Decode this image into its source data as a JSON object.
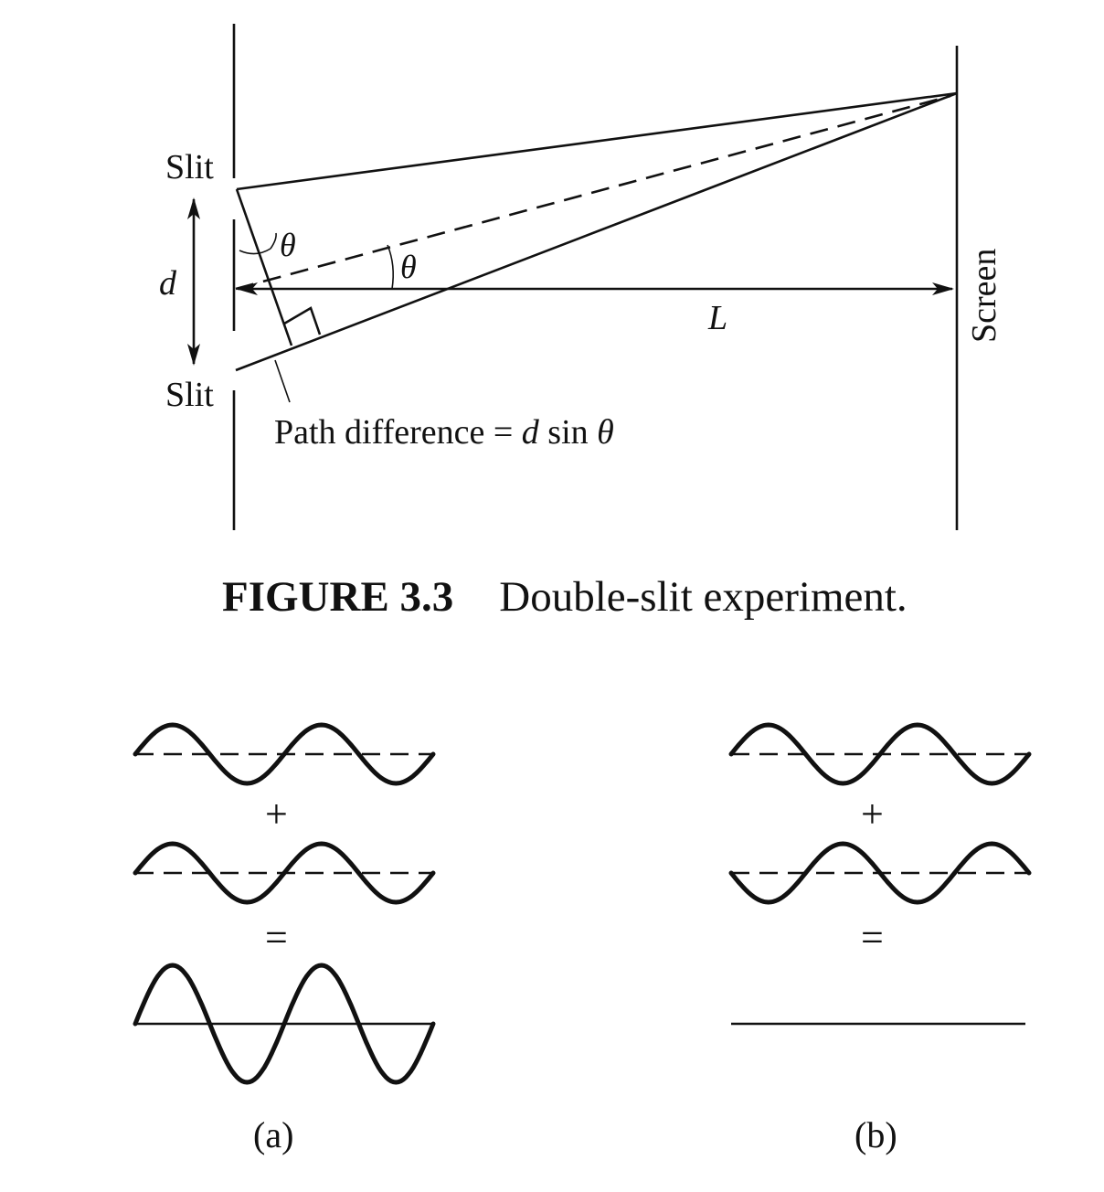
{
  "figure": {
    "slit_top_label": "Slit",
    "slit_bottom_label": "Slit",
    "d_label": "d",
    "theta_left_label": "θ",
    "theta_center_label": "θ",
    "L_label": "L",
    "screen_label": "Screen",
    "path_diff_prefix": "Path difference = ",
    "path_diff_d": "d",
    "path_diff_sin": " sin ",
    "path_diff_theta": "θ",
    "caption_number": "FIGURE 3.3",
    "caption_text": "Double-slit experiment."
  },
  "waves": {
    "plus_a": "+",
    "equals_a": "=",
    "plus_b": "+",
    "equals_b": "=",
    "label_a": "(a)",
    "label_b": "(b)"
  }
}
